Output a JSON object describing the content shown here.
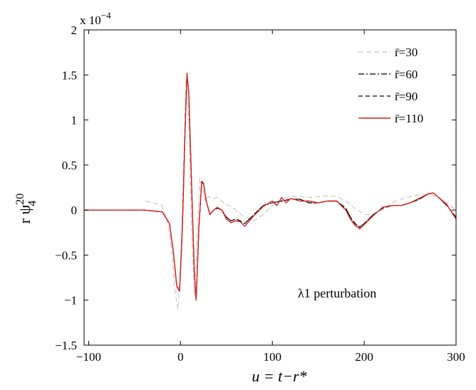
{
  "chart_data": {
    "type": "line",
    "xlabel": "u = t−r*",
    "ylabel": "r ψ",
    "ylabel_sub": "4",
    "ylabel_sup": "20",
    "exponent_label": "x 10",
    "exponent_power": "−4",
    "annotation": "λ1 perturbation",
    "xlim": [
      -105,
      300
    ],
    "ylim": [
      -1.5,
      2
    ],
    "xticks": [
      -100,
      0,
      100,
      200,
      300
    ],
    "xtick_labels": [
      "−100",
      "0",
      "100",
      "200",
      "300"
    ],
    "yticks": [
      -1.5,
      -1,
      -0.5,
      0,
      0.5,
      1,
      1.5,
      2
    ],
    "ytick_labels": [
      "−1.5",
      "−1",
      "−0.5",
      "0",
      "0.5",
      "1",
      "1.5",
      "2"
    ],
    "grid": false,
    "legend_position": "top-right",
    "series": [
      {
        "name": "r̄=30",
        "color": "#c8c8c8",
        "dash": "7,4",
        "x": [
          -38,
          -30,
          -20,
          -15,
          -10,
          -6,
          -3,
          0,
          3,
          6,
          9,
          12,
          15,
          18,
          21,
          24,
          27,
          30,
          35,
          40,
          45,
          50,
          55,
          60,
          70,
          80,
          90,
          100,
          110,
          120,
          130,
          140,
          150,
          160,
          170,
          180,
          190,
          200,
          210,
          220,
          230,
          240,
          250,
          260,
          270,
          280,
          290,
          300
        ],
        "y": [
          0.1,
          0.08,
          0.05,
          -0.1,
          -0.4,
          -0.9,
          -1.1,
          -0.7,
          0.3,
          1.45,
          1.0,
          -0.2,
          -0.95,
          -0.3,
          0.35,
          0.25,
          0.1,
          0.15,
          0.12,
          0.14,
          0.1,
          0.06,
          0.04,
          0.0,
          -0.08,
          -0.12,
          -0.05,
          0.05,
          0.12,
          0.15,
          0.15,
          0.14,
          0.15,
          0.16,
          0.15,
          0.1,
          0.02,
          -0.05,
          -0.05,
          0.0,
          0.08,
          0.12,
          0.15,
          0.17,
          0.18,
          0.14,
          0.08,
          0.0
        ]
      },
      {
        "name": "r̄=60",
        "color": "#000000",
        "dash": "8,3,2,3",
        "x": [
          -105,
          -40,
          -20,
          -12,
          -8,
          -4,
          -1,
          2,
          5,
          7,
          9,
          12,
          15,
          17,
          20,
          23,
          25,
          28,
          32,
          36,
          40,
          45,
          50,
          55,
          60,
          65,
          70,
          75,
          80,
          90,
          100,
          110,
          120,
          130,
          140,
          150,
          160,
          170,
          180,
          185,
          190,
          195,
          200,
          210,
          220,
          230,
          240,
          250,
          260,
          270,
          275,
          280,
          290,
          300
        ],
        "y": [
          0,
          0,
          -0.02,
          -0.15,
          -0.45,
          -0.85,
          -0.88,
          -0.2,
          0.9,
          1.5,
          1.3,
          0.3,
          -0.7,
          -1.0,
          -0.2,
          0.3,
          0.3,
          0.1,
          -0.05,
          0.0,
          0.02,
          0.0,
          -0.08,
          -0.12,
          -0.1,
          -0.12,
          -0.15,
          -0.1,
          -0.05,
          0.05,
          0.08,
          0.1,
          0.12,
          0.12,
          0.08,
          0.08,
          0.1,
          0.1,
          0.02,
          -0.08,
          -0.15,
          -0.19,
          -0.15,
          -0.05,
          0.02,
          0.05,
          0.05,
          0.08,
          0.12,
          0.18,
          0.19,
          0.15,
          0.05,
          -0.08
        ]
      },
      {
        "name": "r̄=90",
        "color": "#000000",
        "dash": "6,4",
        "x": [
          -105,
          -40,
          -20,
          -12,
          -8,
          -4,
          -1,
          2,
          5,
          7,
          9,
          12,
          15,
          17,
          20,
          23,
          25,
          28,
          32,
          36,
          40,
          45,
          50,
          55,
          60,
          65,
          70,
          75,
          80,
          90,
          100,
          110,
          120,
          130,
          140,
          150,
          160,
          170,
          180,
          185,
          190,
          195,
          200,
          210,
          220,
          230,
          240,
          250,
          260,
          270,
          275,
          280,
          290,
          300
        ],
        "y": [
          0,
          0,
          -0.02,
          -0.15,
          -0.45,
          -0.85,
          -0.9,
          -0.2,
          0.9,
          1.5,
          1.3,
          0.3,
          -0.7,
          -1.0,
          -0.2,
          0.3,
          0.3,
          0.1,
          -0.05,
          0.0,
          0.02,
          0.0,
          -0.08,
          -0.12,
          -0.1,
          -0.12,
          -0.15,
          -0.1,
          -0.05,
          0.05,
          0.08,
          0.1,
          0.12,
          0.12,
          0.08,
          0.08,
          0.1,
          0.1,
          0.02,
          -0.08,
          -0.15,
          -0.19,
          -0.15,
          -0.05,
          0.02,
          0.05,
          0.05,
          0.08,
          0.12,
          0.18,
          0.19,
          0.15,
          0.05,
          -0.08
        ]
      },
      {
        "name": "r̄=110",
        "color": "#dd1f1f",
        "dash": "",
        "x": [
          -105,
          -40,
          -20,
          -12,
          -8,
          -4,
          -1,
          2,
          5,
          7,
          9,
          12,
          15,
          17,
          20,
          23,
          25,
          28,
          32,
          36,
          40,
          45,
          50,
          55,
          60,
          65,
          70,
          75,
          80,
          90,
          100,
          105,
          110,
          115,
          120,
          130,
          140,
          150,
          160,
          170,
          180,
          185,
          190,
          195,
          200,
          210,
          220,
          230,
          240,
          250,
          260,
          270,
          275,
          280,
          290,
          300
        ],
        "y": [
          0,
          0,
          -0.02,
          -0.15,
          -0.45,
          -0.85,
          -0.9,
          -0.2,
          0.9,
          1.52,
          1.3,
          0.3,
          -0.7,
          -1.0,
          -0.2,
          0.32,
          0.3,
          0.1,
          -0.05,
          0.0,
          0.03,
          0.0,
          -0.1,
          -0.14,
          -0.12,
          -0.13,
          -0.18,
          -0.12,
          -0.06,
          0.04,
          0.1,
          0.05,
          0.14,
          0.08,
          0.13,
          0.1,
          0.1,
          0.08,
          0.1,
          0.1,
          0.0,
          -0.1,
          -0.17,
          -0.21,
          -0.16,
          -0.06,
          0.03,
          0.05,
          0.05,
          0.08,
          0.13,
          0.18,
          0.19,
          0.15,
          0.06,
          -0.1
        ]
      }
    ]
  }
}
